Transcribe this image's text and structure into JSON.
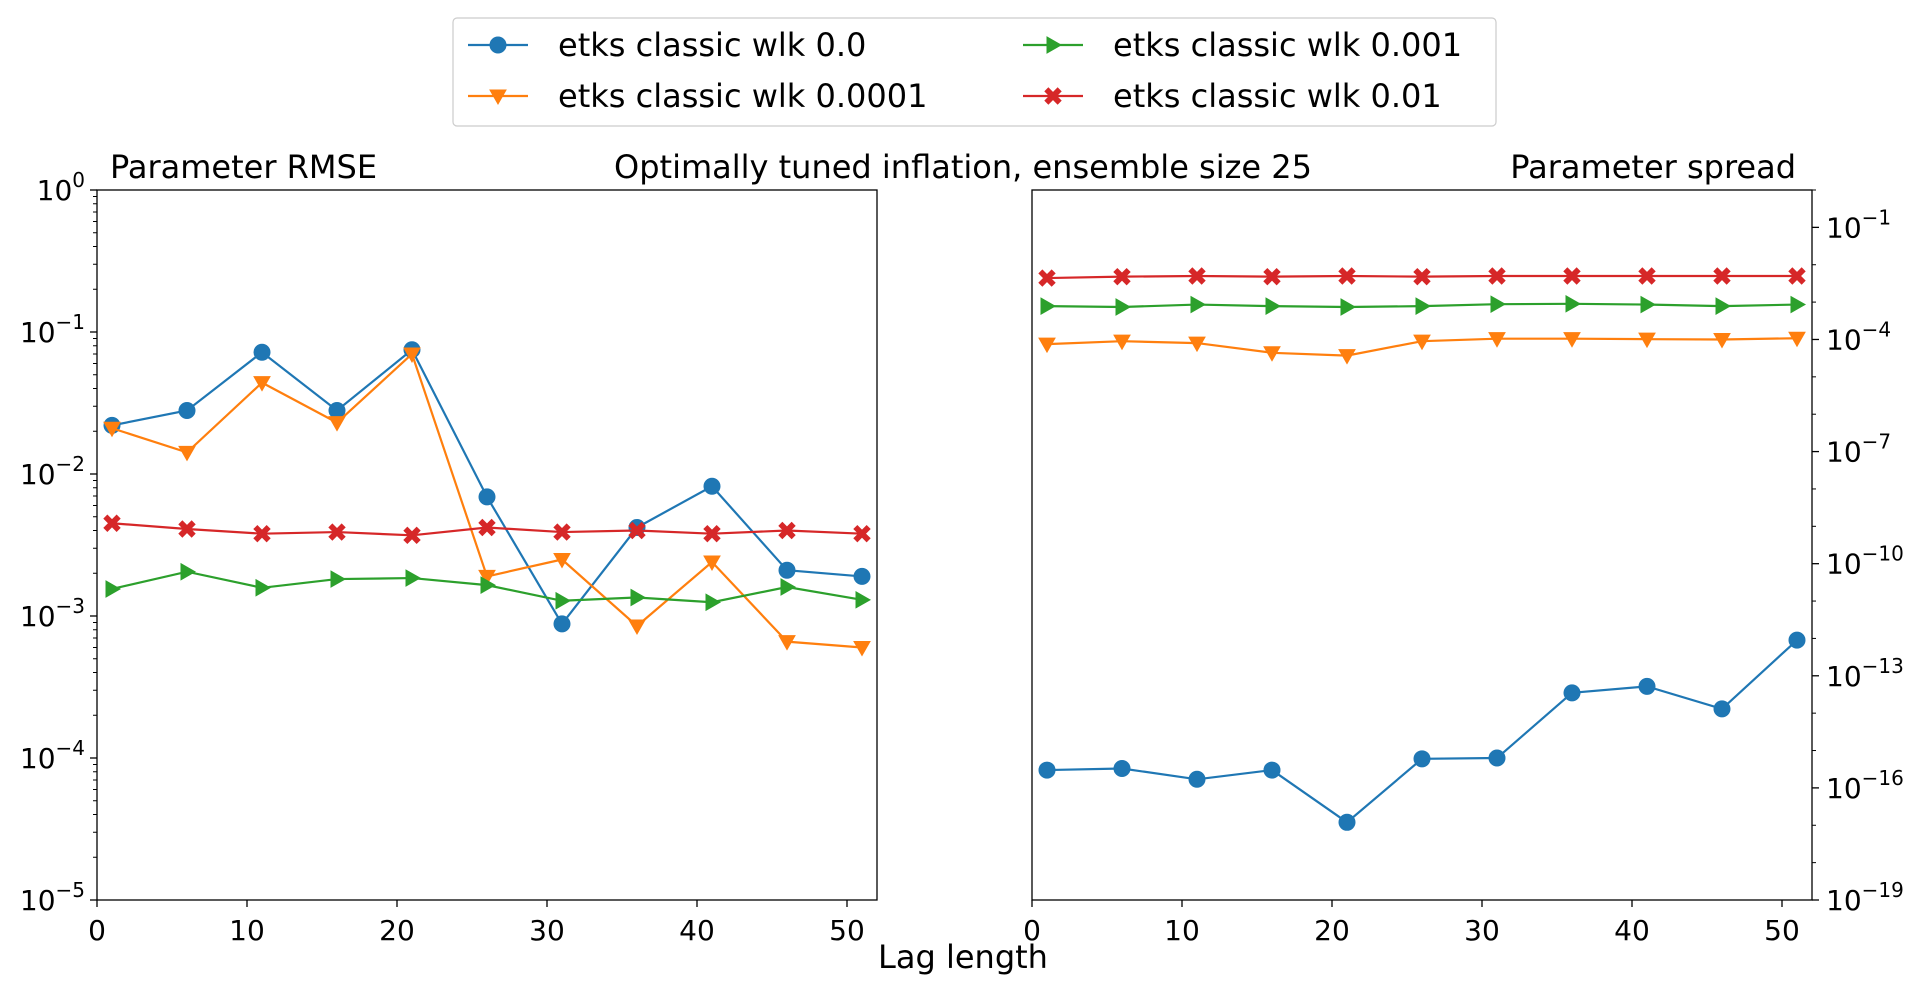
{
  "figure": {
    "suptitle": "Optimally tuned inflation, ensemble size 25",
    "xlabel": "Lag length",
    "legend": {
      "placement": "top-center",
      "columns": 2
    }
  },
  "series_styles": [
    {
      "name": "etks classic wlk 0.0",
      "color": "#1f77b4",
      "marker": "circle"
    },
    {
      "name": "etks classic wlk 0.0001",
      "color": "#ff7f0e",
      "marker": "triangle-down"
    },
    {
      "name": "etks classic wlk 0.001",
      "color": "#2ca02c",
      "marker": "triangle-right"
    },
    {
      "name": "etks classic wlk 0.01",
      "color": "#d62728",
      "marker": "x-filled"
    }
  ],
  "chart_data": [
    {
      "type": "line",
      "title": "Parameter RMSE",
      "xlabel": "",
      "ylabel": "",
      "yscale": "log",
      "xlim": [
        0,
        52
      ],
      "ylim_exp": [
        -5,
        0
      ],
      "xticks": [
        0,
        10,
        20,
        30,
        40,
        50
      ],
      "xtick_labels": [
        "0",
        "10",
        "20",
        "30",
        "40",
        "50"
      ],
      "ytick_exps": [
        -5,
        -4,
        -3,
        -2,
        -1,
        0
      ],
      "ytick_labels": [
        {
          "base": "10",
          "exp": "−5"
        },
        {
          "base": "10",
          "exp": "−4"
        },
        {
          "base": "10",
          "exp": "−3"
        },
        {
          "base": "10",
          "exp": "−2"
        },
        {
          "base": "10",
          "exp": "−1"
        },
        {
          "base": "10",
          "exp": "0"
        }
      ],
      "yaxis_side": "left",
      "grid": false,
      "x": [
        1,
        6,
        11,
        16,
        21,
        26,
        31,
        36,
        41,
        46,
        51
      ],
      "series": [
        {
          "name": "etks classic wlk 0.0",
          "values": [
            0.022,
            0.028,
            0.072,
            0.028,
            0.075,
            0.0069,
            0.00088,
            0.0042,
            0.0082,
            0.0021,
            0.0019
          ]
        },
        {
          "name": "etks classic wlk 0.0001",
          "values": [
            0.021,
            0.0142,
            0.044,
            0.023,
            0.07,
            0.0019,
            0.0025,
            0.00085,
            0.0024,
            0.00066,
            0.0006
          ]
        },
        {
          "name": "etks classic wlk 0.001",
          "values": [
            0.00155,
            0.00205,
            0.00158,
            0.00182,
            0.00185,
            0.00165,
            0.00128,
            0.00135,
            0.00125,
            0.0016,
            0.0013
          ]
        },
        {
          "name": "etks classic wlk 0.01",
          "values": [
            0.0045,
            0.0041,
            0.0038,
            0.0039,
            0.0037,
            0.0042,
            0.0039,
            0.004,
            0.0038,
            0.004,
            0.0038
          ]
        }
      ]
    },
    {
      "type": "line",
      "title": "Parameter spread",
      "xlabel": "",
      "ylabel": "",
      "yscale": "log",
      "xlim": [
        0,
        52
      ],
      "ylim_exp": [
        -19,
        0
      ],
      "xticks": [
        0,
        10,
        20,
        30,
        40,
        50
      ],
      "xtick_labels": [
        "0",
        "10",
        "20",
        "30",
        "40",
        "50"
      ],
      "ytick_exps": [
        -19,
        -16,
        -13,
        -10,
        -7,
        -4,
        -1
      ],
      "ytick_labels": [
        {
          "base": "10",
          "exp": "−19"
        },
        {
          "base": "10",
          "exp": "−16"
        },
        {
          "base": "10",
          "exp": "−13"
        },
        {
          "base": "10",
          "exp": "−10"
        },
        {
          "base": "10",
          "exp": "−7"
        },
        {
          "base": "10",
          "exp": "−4"
        },
        {
          "base": "10",
          "exp": "−1"
        }
      ],
      "yaxis_side": "right",
      "grid": false,
      "x": [
        1,
        6,
        11,
        16,
        21,
        26,
        31,
        36,
        41,
        46,
        51
      ],
      "series": [
        {
          "name": "etks classic wlk 0.0",
          "values": [
            3e-16,
            3.3e-16,
            1.7e-16,
            3e-16,
            1.2e-17,
            6e-16,
            6.3e-16,
            3.5e-14,
            5.2e-14,
            1.3e-14,
            9e-13
          ]
        },
        {
          "name": "etks classic wlk 0.0001",
          "values": [
            7.5e-05,
            9e-05,
            8e-05,
            4.4e-05,
            3.7e-05,
            9e-05,
            0.000105,
            0.000105,
            0.000102,
            0.0001,
            0.000108
          ]
        },
        {
          "name": "etks classic wlk 0.001",
          "values": [
            0.00078,
            0.00074,
            0.00086,
            0.00078,
            0.00074,
            0.00078,
            0.00088,
            0.0009,
            0.00086,
            0.00078,
            0.00086
          ]
        },
        {
          "name": "etks classic wlk 0.01",
          "values": [
            0.0044,
            0.0048,
            0.005,
            0.0048,
            0.005,
            0.0048,
            0.005,
            0.005,
            0.005,
            0.005,
            0.005
          ]
        }
      ]
    }
  ]
}
